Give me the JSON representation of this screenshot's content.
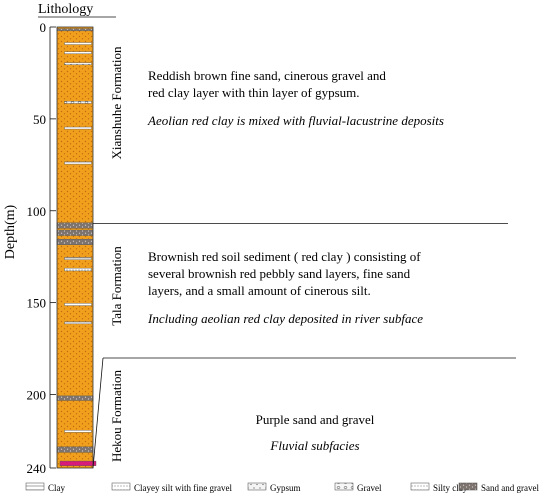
{
  "column": {
    "header": "Lithology",
    "axis_title": "Depth(m)",
    "depth_ticks": [
      "0",
      "50",
      "100",
      "150",
      "200",
      "240"
    ],
    "depth_range_m": [
      0,
      240
    ],
    "base_color": "#f0a01c",
    "dot_color": "#c46a10",
    "thin_layers": [
      {
        "depth_m": 1.5,
        "thickness_m": 1.2,
        "type": "sand-gravel"
      },
      {
        "depth_m": 9,
        "thickness_m": 1,
        "type": "clay"
      },
      {
        "depth_m": 14,
        "thickness_m": 1,
        "type": "clay"
      },
      {
        "depth_m": 20,
        "thickness_m": 1,
        "type": "gypsum"
      },
      {
        "depth_m": 41,
        "thickness_m": 1.2,
        "type": "gravel"
      },
      {
        "depth_m": 55,
        "thickness_m": 1,
        "type": "clay"
      },
      {
        "depth_m": 74,
        "thickness_m": 1.2,
        "type": "clay"
      },
      {
        "depth_m": 108,
        "thickness_m": 3,
        "type": "sand-gravel"
      },
      {
        "depth_m": 112,
        "thickness_m": 3,
        "type": "sand-gravel"
      },
      {
        "depth_m": 117,
        "thickness_m": 3,
        "type": "sand-gravel"
      },
      {
        "depth_m": 126,
        "thickness_m": 1.2,
        "type": "clay"
      },
      {
        "depth_m": 132,
        "thickness_m": 1.5,
        "type": "silty-clay"
      },
      {
        "depth_m": 151,
        "thickness_m": 1.2,
        "type": "clay"
      },
      {
        "depth_m": 161,
        "thickness_m": 1,
        "type": "clay"
      },
      {
        "depth_m": 202,
        "thickness_m": 2.5,
        "type": "sand-gravel"
      },
      {
        "depth_m": 220,
        "thickness_m": 1,
        "type": "clay"
      },
      {
        "depth_m": 230,
        "thickness_m": 3,
        "type": "sand-gravel"
      },
      {
        "depth_m": 237.5,
        "thickness_m": 2.5,
        "type": "gypsum-magenta"
      }
    ],
    "magenta_color": "#d81b7a"
  },
  "formations": [
    {
      "name": "Xianshuhe Formation",
      "top_m": 0,
      "bottom_m": 107,
      "description_lines": [
        "Reddish brown fine sand, cinerous gravel and",
        "red clay layer with thin layer of gypsum."
      ],
      "facies": "Aeolian red clay is mixed with fluvial-lacustrine deposits"
    },
    {
      "name": "Tala Formation",
      "top_m": 107,
      "bottom_m": 180,
      "description_lines": [
        "Brownish red soil sediment ( red clay ) consisting of",
        "several brownish red pebbly sand layers, fine sand",
        "layers, and a small amount of cinerous silt."
      ],
      "facies": "Including aeolian red clay deposited in river subface"
    },
    {
      "name": "Hekou Formation",
      "top_m": 180,
      "bottom_m": 240,
      "description_lines": [
        "Purple sand and gravel"
      ],
      "facies": "Fluvial subfacies"
    }
  ],
  "legend": [
    {
      "label": "Clay",
      "type": "clay"
    },
    {
      "label": "Clayey silt with fine gravel",
      "type": "clayey-silt"
    },
    {
      "label": "Gypsum",
      "type": "gypsum"
    },
    {
      "label": "Gravel",
      "type": "gravel"
    },
    {
      "label": "Silty clay",
      "type": "silty-clay"
    },
    {
      "label": "Sand and gravel",
      "type": "sand-gravel"
    }
  ]
}
